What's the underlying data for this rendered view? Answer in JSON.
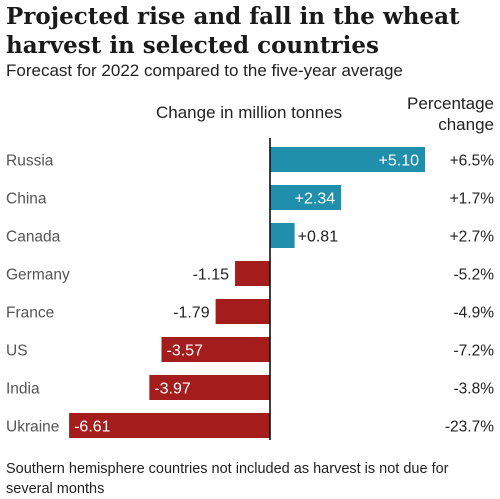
{
  "title": "Projected rise and fall in the wheat harvest in selected countries",
  "subtitle": "Forecast for 2022 compared to the five-year average",
  "footnote": "Southern hemisphere countries not included as harvest is not due for several months",
  "colors": {
    "positive": "#1f8fac",
    "negative": "#a51c1c",
    "axis": "#000000",
    "text": "#222222",
    "label": "#555555"
  },
  "chart_data": {
    "type": "bar",
    "orientation": "horizontal",
    "xlabel": "Change in million tonnes",
    "secondary_column_label": "Percentage change",
    "categories": [
      "Russia",
      "China",
      "Canada",
      "Germany",
      "France",
      "US",
      "India",
      "Ukraine"
    ],
    "values": [
      5.1,
      2.34,
      0.81,
      -1.15,
      -1.79,
      -3.57,
      -3.97,
      -6.61
    ],
    "value_labels": [
      "+5.10",
      "+2.34",
      "+0.81",
      "-1.15",
      "-1.79",
      "-3.57",
      "-3.97",
      "-6.61"
    ],
    "percentage_change": [
      "+6.5%",
      "+1.7%",
      "+2.7%",
      "-5.2%",
      "-4.9%",
      "-7.2%",
      "-3.8%",
      "-23.7%"
    ],
    "xlim": [
      -6.61,
      5.1
    ],
    "grid": false,
    "legend": "none"
  }
}
